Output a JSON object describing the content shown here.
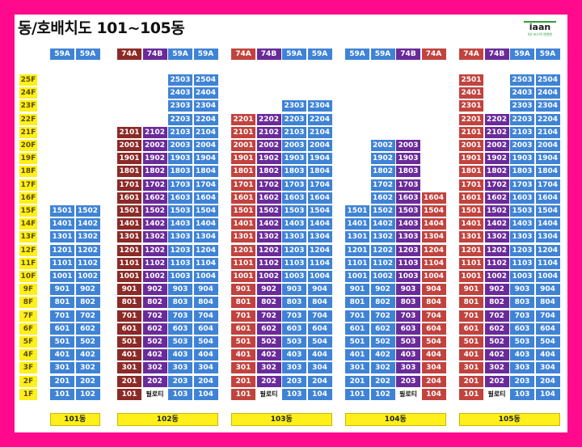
{
  "title": "동/호배치도 101~105동",
  "logo": {
    "text": "iaan",
    "sub": "IUI 포스텍 엔앤앤"
  },
  "floors": [
    "25F",
    "24F",
    "23F",
    "22F",
    "21F",
    "20F",
    "19F",
    "18F",
    "17F",
    "16F",
    "15F",
    "14F",
    "13F",
    "12F",
    "11F",
    "10F",
    "9F",
    "8F",
    "7F",
    "6F",
    "5F",
    "4F",
    "3F",
    "2F",
    "1F"
  ],
  "colors": {
    "blue": "#3f83d6",
    "red": "#c2433e",
    "dark_red": "#8c2a26",
    "purple": "#6a2b9a",
    "floor_yellow": "#ffef1a",
    "frame": "#ff0a8c"
  },
  "buildings": [
    {
      "label": "101동",
      "units": [
        {
          "type": "59A",
          "color": "blue",
          "line": "01",
          "top": 15
        },
        {
          "type": "59A",
          "color": "blue",
          "line": "02",
          "top": 15
        }
      ]
    },
    {
      "label": "102동",
      "units": [
        {
          "type": "74A",
          "color": "dred",
          "line": "01",
          "top": 21
        },
        {
          "type": "74B",
          "color": "purple",
          "line": "02",
          "top": 21,
          "pilotis": true
        },
        {
          "type": "59A",
          "color": "blue",
          "line": "03",
          "top": 25
        },
        {
          "type": "59A",
          "color": "blue",
          "line": "04",
          "top": 25
        }
      ]
    },
    {
      "label": "103동",
      "units": [
        {
          "type": "74A",
          "color": "red",
          "line": "01",
          "top": 22
        },
        {
          "type": "74B",
          "color": "purple",
          "line": "02",
          "top": 22,
          "pilotis": true
        },
        {
          "type": "59A",
          "color": "blue",
          "line": "03",
          "top": 23
        },
        {
          "type": "59A",
          "color": "blue",
          "line": "04",
          "top": 23
        }
      ]
    },
    {
      "label": "104동",
      "units": [
        {
          "type": "59A",
          "color": "blue",
          "line": "01",
          "top": 15
        },
        {
          "type": "59A",
          "color": "blue",
          "line": "02",
          "top": 20
        },
        {
          "type": "74B",
          "color": "purple",
          "line": "03",
          "top": 20,
          "pilotis": true
        },
        {
          "type": "74A",
          "color": "red",
          "line": "04",
          "top": 16
        }
      ]
    },
    {
      "label": "105동",
      "units": [
        {
          "type": "74A",
          "color": "red",
          "line": "01",
          "top": 25
        },
        {
          "type": "74B",
          "color": "purple",
          "line": "02",
          "top": 22,
          "pilotis": true
        },
        {
          "type": "59A",
          "color": "blue",
          "line": "03",
          "top": 25
        },
        {
          "type": "59A",
          "color": "blue",
          "line": "04",
          "top": 25
        }
      ]
    }
  ],
  "pilotis_label": "필로티"
}
